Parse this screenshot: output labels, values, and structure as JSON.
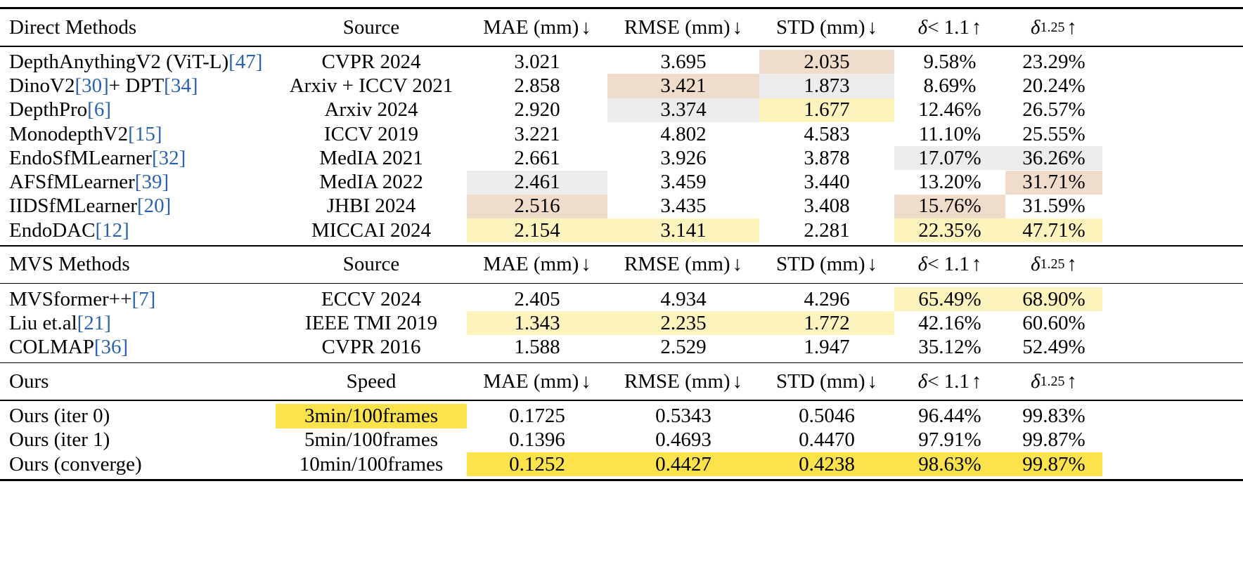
{
  "colors": {
    "first": "#fde34b",
    "second": "#fdf3bd",
    "third": "#f0dccb",
    "fourth": "#ececec"
  },
  "sections": [
    {
      "header": [
        "Direct Methods",
        "Source",
        "MAE (mm)",
        "RMSE (mm)",
        "STD (mm)",
        "δ < 1.1",
        "δ1.25"
      ],
      "header_arrows": [
        "",
        "",
        "↓",
        "↓",
        "↓",
        "↑",
        "↑"
      ],
      "rows": [
        {
          "method": "DepthAnythingV2 (ViT-L)",
          "ref": "[47]",
          "source": "CVPR 2024",
          "mae": "3.021",
          "rmse": "3.695",
          "std": "2.035",
          "d11": "9.58%",
          "d125": "23.29%",
          "hl": [
            "",
            "",
            "third",
            "",
            ""
          ]
        },
        {
          "method": "DinoV2",
          "ref": "[30]",
          "method_suffix": " + DPT",
          "ref2": "[34]",
          "source": "Arxiv + ICCV 2021",
          "mae": "2.858",
          "rmse": "3.421",
          "std": "1.873",
          "d11": "8.69%",
          "d125": "20.24%",
          "hl": [
            "",
            "third",
            "fourth",
            "",
            ""
          ]
        },
        {
          "method": "DepthPro",
          "ref": "[6]",
          "source": "Arxiv 2024",
          "mae": "2.920",
          "rmse": "3.374",
          "std": "1.677",
          "d11": "12.46%",
          "d125": "26.57%",
          "hl": [
            "",
            "fourth",
            "second",
            "",
            ""
          ]
        },
        {
          "method": "MonodepthV2",
          "ref": "[15]",
          "source": "ICCV 2019",
          "mae": "3.221",
          "rmse": "4.802",
          "std": "4.583",
          "d11": "11.10%",
          "d125": "25.55%",
          "hl": [
            "",
            "",
            "",
            "",
            ""
          ]
        },
        {
          "method": "EndoSfMLearner",
          "ref": "[32]",
          "source": "MedIA 2021",
          "mae": "2.661",
          "rmse": "3.926",
          "std": "3.878",
          "d11": "17.07%",
          "d125": "36.26%",
          "hl": [
            "",
            "",
            "",
            "fourth",
            "fourth"
          ]
        },
        {
          "method": "AFSfMLearner",
          "ref": "[39]",
          "source": "MedIA 2022",
          "mae": "2.461",
          "rmse": "3.459",
          "std": "3.440",
          "d11": "13.20%",
          "d125": "31.71%",
          "hl": [
            "fourth",
            "",
            "",
            "",
            "third"
          ]
        },
        {
          "method": "IIDSfMLearner",
          "ref": "[20]",
          "source": "JHBI 2024",
          "mae": "2.516",
          "rmse": "3.435",
          "std": "3.408",
          "d11": "15.76%",
          "d125": "31.59%",
          "hl": [
            "third",
            "",
            "",
            "third",
            ""
          ]
        },
        {
          "method": "EndoDAC",
          "ref": "[12]",
          "source": "MICCAI 2024",
          "mae": "2.154",
          "rmse": "3.141",
          "std": "2.281",
          "d11": "22.35%",
          "d125": "47.71%",
          "hl": [
            "second",
            "second",
            "",
            "second",
            "second"
          ]
        }
      ]
    },
    {
      "header": [
        "MVS Methods",
        "Source",
        "MAE (mm)",
        "RMSE (mm)",
        "STD (mm)",
        "δ < 1.1",
        "δ1.25"
      ],
      "header_arrows": [
        "",
        "",
        "↓",
        "↓",
        "↓",
        "↑",
        "↑"
      ],
      "rows": [
        {
          "method": "MVSformer++",
          "ref": "[7]",
          "source": "ECCV 2024",
          "mae": "2.405",
          "rmse": "4.934",
          "std": "4.296",
          "d11": "65.49%",
          "d125": "68.90%",
          "hl": [
            "",
            "",
            "",
            "second",
            "second"
          ]
        },
        {
          "method": "Liu et.al",
          "ref": "[21]",
          "source": "IEEE TMI 2019",
          "mae": "1.343",
          "rmse": "2.235",
          "std": "1.772",
          "d11": "42.16%",
          "d125": "60.60%",
          "hl": [
            "second",
            "second",
            "second",
            "",
            ""
          ]
        },
        {
          "method": "COLMAP",
          "ref": "[36]",
          "source": "CVPR 2016",
          "mae": "1.588",
          "rmse": "2.529",
          "std": "1.947",
          "d11": "35.12%",
          "d125": "52.49%",
          "hl": [
            "",
            "",
            "",
            "",
            ""
          ]
        }
      ]
    },
    {
      "header": [
        "Ours",
        "Speed",
        "MAE (mm)",
        "RMSE (mm)",
        "STD (mm)",
        "δ < 1.1",
        "δ1.25"
      ],
      "header_arrows": [
        "",
        "",
        "↓",
        "↓",
        "↓",
        "↑",
        "↑"
      ],
      "rows": [
        {
          "method": "Ours (iter 0)",
          "ref": "",
          "source": "3min/100frames",
          "mae": "0.1725",
          "rmse": "0.5343",
          "std": "0.5046",
          "d11": "96.44%",
          "d125": "99.83%",
          "hl": [
            "",
            "",
            "",
            "",
            ""
          ],
          "source_hl": "first"
        },
        {
          "method": "Ours (iter 1)",
          "ref": "",
          "source": "5min/100frames",
          "mae": "0.1396",
          "rmse": "0.4693",
          "std": "0.4470",
          "d11": "97.91%",
          "d125": "99.87%",
          "hl": [
            "",
            "",
            "",
            "",
            ""
          ]
        },
        {
          "method": "Ours (converge)",
          "ref": "",
          "source": "10min/100frames",
          "mae": "0.1252",
          "rmse": "0.4427",
          "std": "0.4238",
          "d11": "98.63%",
          "d125": "99.87%",
          "hl": [
            "first",
            "first",
            "first",
            "first",
            "first"
          ]
        }
      ]
    }
  ]
}
